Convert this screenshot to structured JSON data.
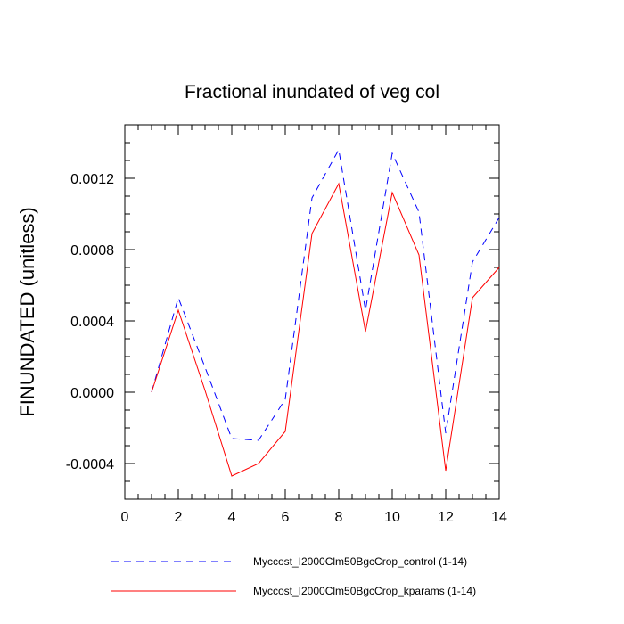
{
  "chart_data": {
    "type": "line",
    "title": "Fractional inundated of veg col",
    "xlabel": "",
    "ylabel": "FINUNDATED  (unitless)",
    "xlim": [
      0,
      14
    ],
    "ylim": [
      -0.0006,
      0.0015
    ],
    "x_ticks": [
      0,
      2,
      4,
      6,
      8,
      10,
      12,
      14
    ],
    "x_tick_labels": [
      "0",
      "2",
      "4",
      "6",
      "8",
      "10",
      "12",
      "14"
    ],
    "y_ticks": [
      -0.0004,
      0.0,
      0.0004,
      0.0008,
      0.0012
    ],
    "y_tick_labels": [
      "-0.0004",
      "0.0000",
      "0.0004",
      "0.0008",
      "0.0012"
    ],
    "grid": false,
    "legend_position": "bottom",
    "x": [
      1,
      2,
      3,
      4,
      5,
      6,
      7,
      8,
      9,
      10,
      11,
      12,
      13,
      14
    ],
    "series": [
      {
        "name": "Myccost_I2000Clm50BgcCrop_control (1-14)",
        "color": "#0000ff",
        "style": "dashed",
        "values": [
          0.0,
          0.00053,
          0.00014,
          -0.00026,
          -0.00027,
          -4e-05,
          0.00109,
          0.00136,
          0.00046,
          0.00134,
          0.00101,
          -0.00023,
          0.00073,
          0.00098
        ]
      },
      {
        "name": "Myccost_I2000Clm50BgcCrop_kparams (1-14)",
        "color": "#ff0000",
        "style": "solid",
        "values": [
          0.0,
          0.00046,
          1e-05,
          -0.00047,
          -0.0004,
          -0.00022,
          0.00089,
          0.00117,
          0.00034,
          0.00112,
          0.00077,
          -0.00044,
          0.00053,
          0.0007
        ]
      }
    ]
  }
}
